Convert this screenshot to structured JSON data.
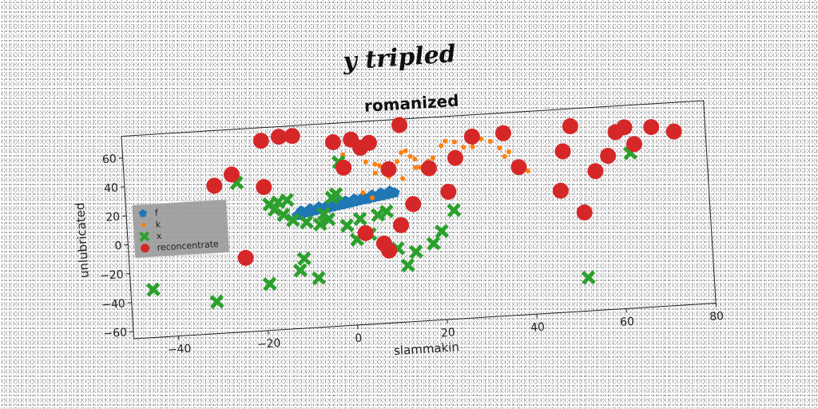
{
  "chart_data": {
    "type": "scatter",
    "suptitle": "y tripled",
    "title": "romanized",
    "xlabel": "slammakin",
    "ylabel": "unlubricated",
    "xlim": [
      -50,
      80
    ],
    "ylim": [
      -65,
      75
    ],
    "xticks": [
      -40,
      -20,
      0,
      20,
      40,
      60,
      80
    ],
    "yticks": [
      -60,
      -40,
      -20,
      0,
      20,
      40,
      60
    ],
    "grid": false,
    "legend": {
      "placement": "center-left"
    },
    "series": [
      {
        "name": "f",
        "marker": "pentagon",
        "color": "#1f77b4",
        "x": [
          -12,
          -11,
          -10,
          -9,
          -8,
          -7,
          -6,
          -5,
          -4,
          -3,
          -2,
          -1,
          0,
          1,
          2,
          3,
          4,
          5,
          6,
          7,
          8,
          9,
          10,
          -11,
          -9,
          -7,
          -5,
          -3,
          -1,
          1,
          3,
          5,
          7,
          9
        ],
        "y": [
          13,
          14,
          14.5,
          15,
          15.5,
          16,
          16.5,
          17,
          17.5,
          18,
          18.5,
          19,
          19.5,
          20,
          20.5,
          21,
          21.5,
          22,
          22.5,
          23,
          23.5,
          24,
          24.5,
          16,
          17,
          18,
          19,
          20,
          21,
          22,
          23,
          24,
          25,
          26
        ]
      },
      {
        "name": "k",
        "marker": "circle-small",
        "color": "#ff7f0e",
        "x": [
          -1,
          4,
          6,
          7,
          8,
          9,
          10,
          11,
          12,
          13,
          14,
          15,
          16,
          17,
          19,
          21,
          22,
          24,
          26,
          28,
          30,
          32,
          34,
          35,
          36,
          38,
          40,
          6,
          9,
          12,
          15,
          18,
          3,
          5
        ],
        "y": [
          53,
          47,
          45,
          44,
          43,
          40,
          42,
          46,
          52,
          53,
          49,
          47,
          41,
          38,
          47,
          55,
          58,
          57,
          53,
          53,
          58,
          56,
          51,
          45,
          48,
          38,
          34,
          39,
          36,
          34,
          41,
          45,
          26,
          22
        ]
      },
      {
        "name": "x",
        "marker": "x",
        "color": "#2ca02c",
        "x": [
          -45,
          -31,
          -25,
          -19,
          -18,
          -17,
          -16,
          -15,
          -14,
          -13,
          -12,
          -11,
          -10,
          -8,
          -7,
          -6,
          -5,
          -4,
          -3,
          -2,
          -1,
          1,
          2,
          4,
          6,
          8,
          10,
          12,
          14,
          18,
          20,
          23,
          52,
          63
        ],
        "y": [
          -32,
          -43,
          38,
          -33,
          22,
          18,
          23,
          14,
          24,
          10,
          -25,
          -17,
          8,
          -31,
          6,
          13,
          9,
          24,
          26,
          48,
          4,
          -6,
          8,
          -3,
          10,
          12,
          -14,
          -26,
          -17,
          -12,
          -4,
          10,
          -42,
          42
        ]
      },
      {
        "name": "reconcentrate",
        "marker": "circle-large",
        "color": "#d62728",
        "x": [
          -30,
          -26,
          -19,
          -19,
          -15,
          -12,
          -3,
          -1,
          1,
          3,
          5,
          8,
          9,
          11,
          12,
          14,
          18,
          22,
          24,
          28,
          35,
          38,
          47,
          48,
          50,
          52,
          55,
          58,
          60,
          62,
          64,
          68,
          71,
          73,
          -24,
          3,
          7
        ],
        "y": [
          37,
          44,
          34,
          66,
          68,
          68,
          62,
          44,
          63,
          57,
          60,
          -15,
          41,
          2,
          71,
          16,
          40,
          23,
          46,
          60,
          61,
          37,
          19,
          46,
          63,
          3,
          31,
          41,
          57,
          60,
          48,
          59,
          80,
          55,
          -14,
          -2,
          -10
        ]
      }
    ]
  }
}
